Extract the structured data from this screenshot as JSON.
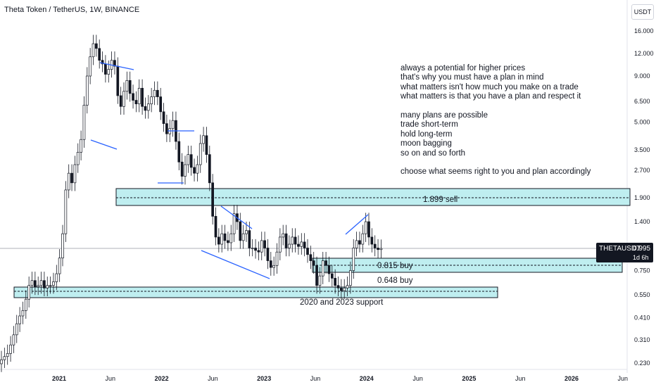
{
  "header": {
    "title": "Theta Token / TetherUS, 1W, BINANCE",
    "currency": "USDT"
  },
  "price_tag": {
    "symbol": "THETAUSDT",
    "price": "0.995",
    "countdown": "1d 6h"
  },
  "note_lines": [
    "always a potential for higher prices",
    "that's why you must have a plan in mind",
    "what matters isn't how much you make on a trade",
    "what matters is that you have a plan and respect it",
    "",
    "many plans are possible",
    "trade short-term",
    "hold long-term",
    "moon bagging",
    "so on and so forth",
    "",
    "choose what seems right to you and plan accordingly"
  ],
  "zones": {
    "sell_label": "1.899 sell",
    "buy1_label": "0.815 buy",
    "buy2_label": "0.648 buy",
    "support_label": "2020 and 2023 support"
  },
  "colors": {
    "up": "#131722",
    "down": "#131722",
    "zone_fill": "#bfeef0",
    "zone_border": "#131722",
    "trendline": "#2962ff",
    "price_line": "#9598a1"
  },
  "chart_data": {
    "type": "candlestick",
    "scale": "log",
    "y_ticks": [
      "16.000",
      "12.000",
      "9.000",
      "6.500",
      "5.000",
      "3.500",
      "2.700",
      "1.900",
      "1.400",
      "0.995",
      "0.750",
      "0.550",
      "0.410",
      "0.310",
      "0.230"
    ],
    "x_ticks": [
      "2021",
      "Jun",
      "2022",
      "Jun",
      "2023",
      "Jun",
      "2024",
      "Jun",
      "2025",
      "Jun",
      "2026",
      "Jun"
    ],
    "last_price": 0.995,
    "levels": [
      {
        "label": "1.899 sell",
        "price": 1.899
      },
      {
        "label": "0.815 buy",
        "price": 0.815
      },
      {
        "label": "0.648 buy",
        "price": 0.648
      }
    ],
    "series": [
      {
        "name": "THETAUSDT",
        "values": [
          0.24,
          0.25,
          0.26,
          0.29,
          0.33,
          0.38,
          0.42,
          0.45,
          0.52,
          0.62,
          0.66,
          0.61,
          0.62,
          0.66,
          0.6,
          0.62,
          0.62,
          0.65,
          0.72,
          0.88,
          1.2,
          2.1,
          2.6,
          2.3,
          2.9,
          3.4,
          4.0,
          6.2,
          9.0,
          11.5,
          13.6,
          12.8,
          11.0,
          10.5,
          9.2,
          9.8,
          11.0,
          10.2,
          7.0,
          6.1,
          7.4,
          8.5,
          7.2,
          6.6,
          6.3,
          7.7,
          6.1,
          5.8,
          6.3,
          6.9,
          7.5,
          6.9,
          5.7,
          4.9,
          4.3,
          4.6,
          5.1,
          3.9,
          3.0,
          2.5,
          2.9,
          3.3,
          2.8,
          2.6,
          2.9,
          3.8,
          4.2,
          3.3,
          2.3,
          1.5,
          1.15,
          1.05,
          1.2,
          1.1,
          1.07,
          1.2,
          1.55,
          1.4,
          1.1,
          1.2,
          1.25,
          1.0,
          1.0,
          0.97,
          0.95,
          1.1,
          1.0,
          0.85,
          0.78,
          0.8,
          0.95,
          1.15,
          1.2,
          1.0,
          1.05,
          1.15,
          1.05,
          1.02,
          1.08,
          1.0,
          0.92,
          0.85,
          0.8,
          0.62,
          0.7,
          0.85,
          0.8,
          0.72,
          0.68,
          0.62,
          0.6,
          0.58,
          0.6,
          0.62,
          0.75,
          1.0,
          1.1,
          1.05,
          1.2,
          1.4,
          1.15,
          1.05,
          1.0,
          0.98,
          0.995
        ]
      }
    ]
  }
}
